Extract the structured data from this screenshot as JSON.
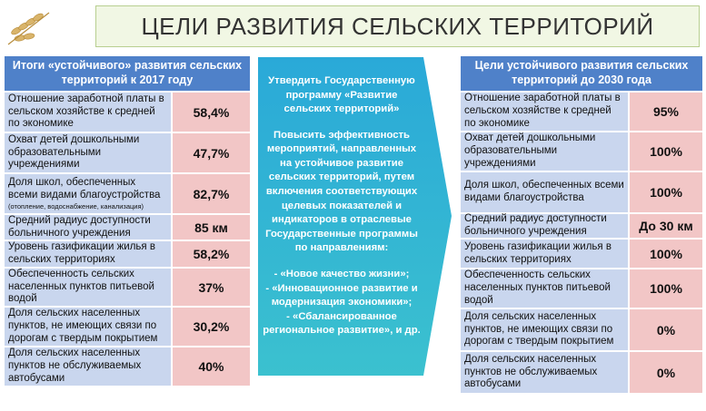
{
  "title": "ЦЕЛИ РАЗВИТИЯ СЕЛЬСКИХ ТЕРРИТОРИЙ",
  "left": {
    "header": "Итоги «устойчивого» развития сельских территорий к 2017 году",
    "rows": [
      {
        "label": "Отношение заработной платы в сельском хозяйстве к средней по экономике",
        "value": "58,4%"
      },
      {
        "label": "Охват детей дошкольными образовательными учреждениями",
        "value": "47,7%"
      },
      {
        "label": "Доля школ, обеспеченных всеми видами благоустройства",
        "note": "(отопление, водоснабжение, канализация)",
        "value": "82,7%"
      },
      {
        "label": "Средний радиус доступности больничного учреждения",
        "value": "85 км"
      },
      {
        "label": "Уровень газификации жилья в сельских территориях",
        "value": "58,2%"
      },
      {
        "label": "Обеспеченность сельских населенных пунктов питьевой водой",
        "value": "37%"
      },
      {
        "label": "Доля сельских населенных пунктов, не имеющих связи по дорогам с твердым покрытием",
        "value": "30,2%"
      },
      {
        "label": "Доля сельских населенных пунктов не обслуживаемых автобусами",
        "value": "40%"
      }
    ]
  },
  "middle": {
    "p1": "Утвердить Государственную программу «Развитие сельских территорий»",
    "p2": "Повысить эффективность мероприятий, направленных на устойчивое развитие сельских территорий, путем включения соответствующих целевых показателей и индикаторов в отраслевые Государственные программы по направлениям:",
    "items": [
      "-   «Новое качество жизни»;",
      "-   «Инновационное развитие и модернизация экономики»;",
      "-   «Сбалансированное региональное развитие», и др."
    ]
  },
  "right": {
    "header": "Цели устойчивого развития сельских территорий до  2030 года",
    "rows": [
      {
        "label": "Отношение заработной платы в сельском хозяйстве к средней по экономике",
        "value": "95%"
      },
      {
        "label": "Охват детей дошкольными образовательными учреждениями",
        "value": "100%"
      },
      {
        "label": "Доля школ, обеспеченных всеми видами благоустройства",
        "value": "100%"
      },
      {
        "label": "Средний радиус доступности больничного учреждения",
        "value": "До 30 км"
      },
      {
        "label": "Уровень газификации жилья в сельских территориях",
        "value": "100%"
      },
      {
        "label": "Обеспеченность сельских населенных пунктов питьевой водой",
        "value": "100%"
      },
      {
        "label": "Доля сельских населенных пунктов, не имеющих связи по дорогам с твердым покрытием",
        "value": "0%"
      },
      {
        "label": "Доля сельских населенных пунктов не обслуживаемых автобусами",
        "value": "0%"
      }
    ]
  }
}
